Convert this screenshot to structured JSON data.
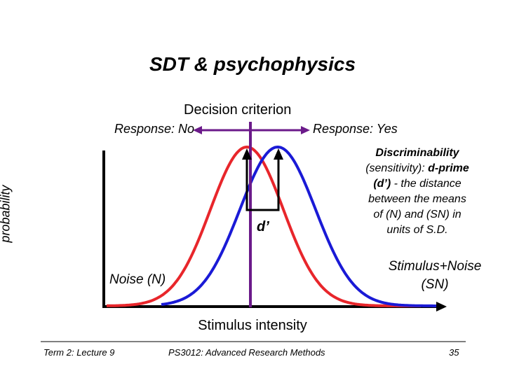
{
  "title": "SDT & psychophysics",
  "criterion_label": "Decision criterion",
  "response_no": "Response: No",
  "response_yes": "Response: Yes",
  "y_axis_label": "probability",
  "x_axis_label": "Stimulus intensity",
  "dprime_label": "d’",
  "description": {
    "line1_bold": "Discriminability",
    "line2_pre": "(sensitivity): ",
    "line2_bold": "d-prime",
    "line3_bold": "(d’)",
    "line3_rest": " - the distance",
    "line4": "between the means",
    "line5": "of (N) and (SN) in",
    "line6": "units of S.D."
  },
  "noise_label": "Noise (N)",
  "signal_noise_label_line1": "Stimulus+Noise",
  "signal_noise_label_line2": "(SN)",
  "footer": {
    "left": "Term 2: Lecture 9",
    "center": "PS3012: Advanced Research Methods",
    "page": "35"
  },
  "colors": {
    "noise_curve": "#e8262b",
    "signal_curve": "#1a1ad6",
    "criterion_line": "#6b1a8a",
    "axes": "#000000"
  }
}
